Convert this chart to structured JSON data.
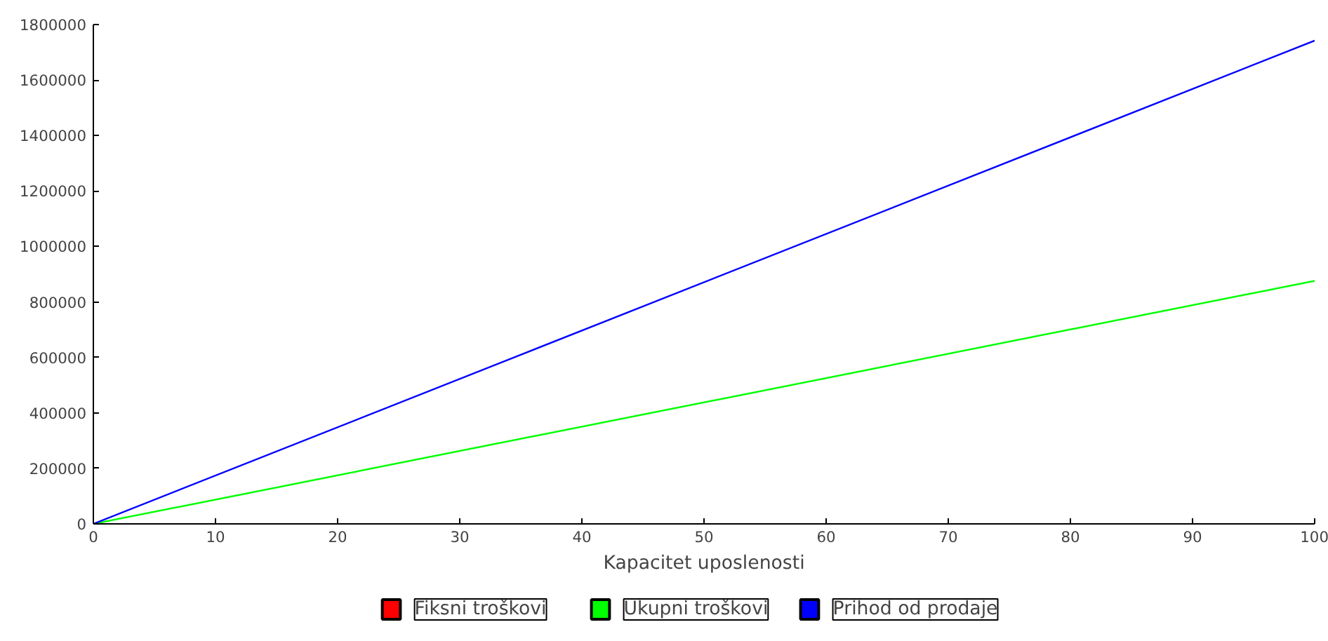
{
  "chart_data": {
    "type": "line",
    "xlabel": "Kapacitet uposlenosti",
    "x": [
      0,
      100
    ],
    "xlim": [
      0,
      100
    ],
    "xticks": [
      0,
      10,
      20,
      30,
      40,
      50,
      60,
      70,
      80,
      90,
      100
    ],
    "ylim": [
      0,
      1800000
    ],
    "yticks": [
      0,
      200000,
      400000,
      600000,
      800000,
      1000000,
      1200000,
      1400000,
      1600000,
      1800000
    ],
    "grid": false,
    "legend": "bottom",
    "series": [
      {
        "name": "Fiksni troškovi",
        "color": "#ff0000",
        "values": [
          null,
          null
        ]
      },
      {
        "name": "Ukupni troškovi",
        "color": "#00ff00",
        "values": [
          0,
          876000
        ]
      },
      {
        "name": "Prihod od prodaje",
        "color": "#0000ff",
        "values": [
          0,
          1742000
        ]
      }
    ]
  }
}
